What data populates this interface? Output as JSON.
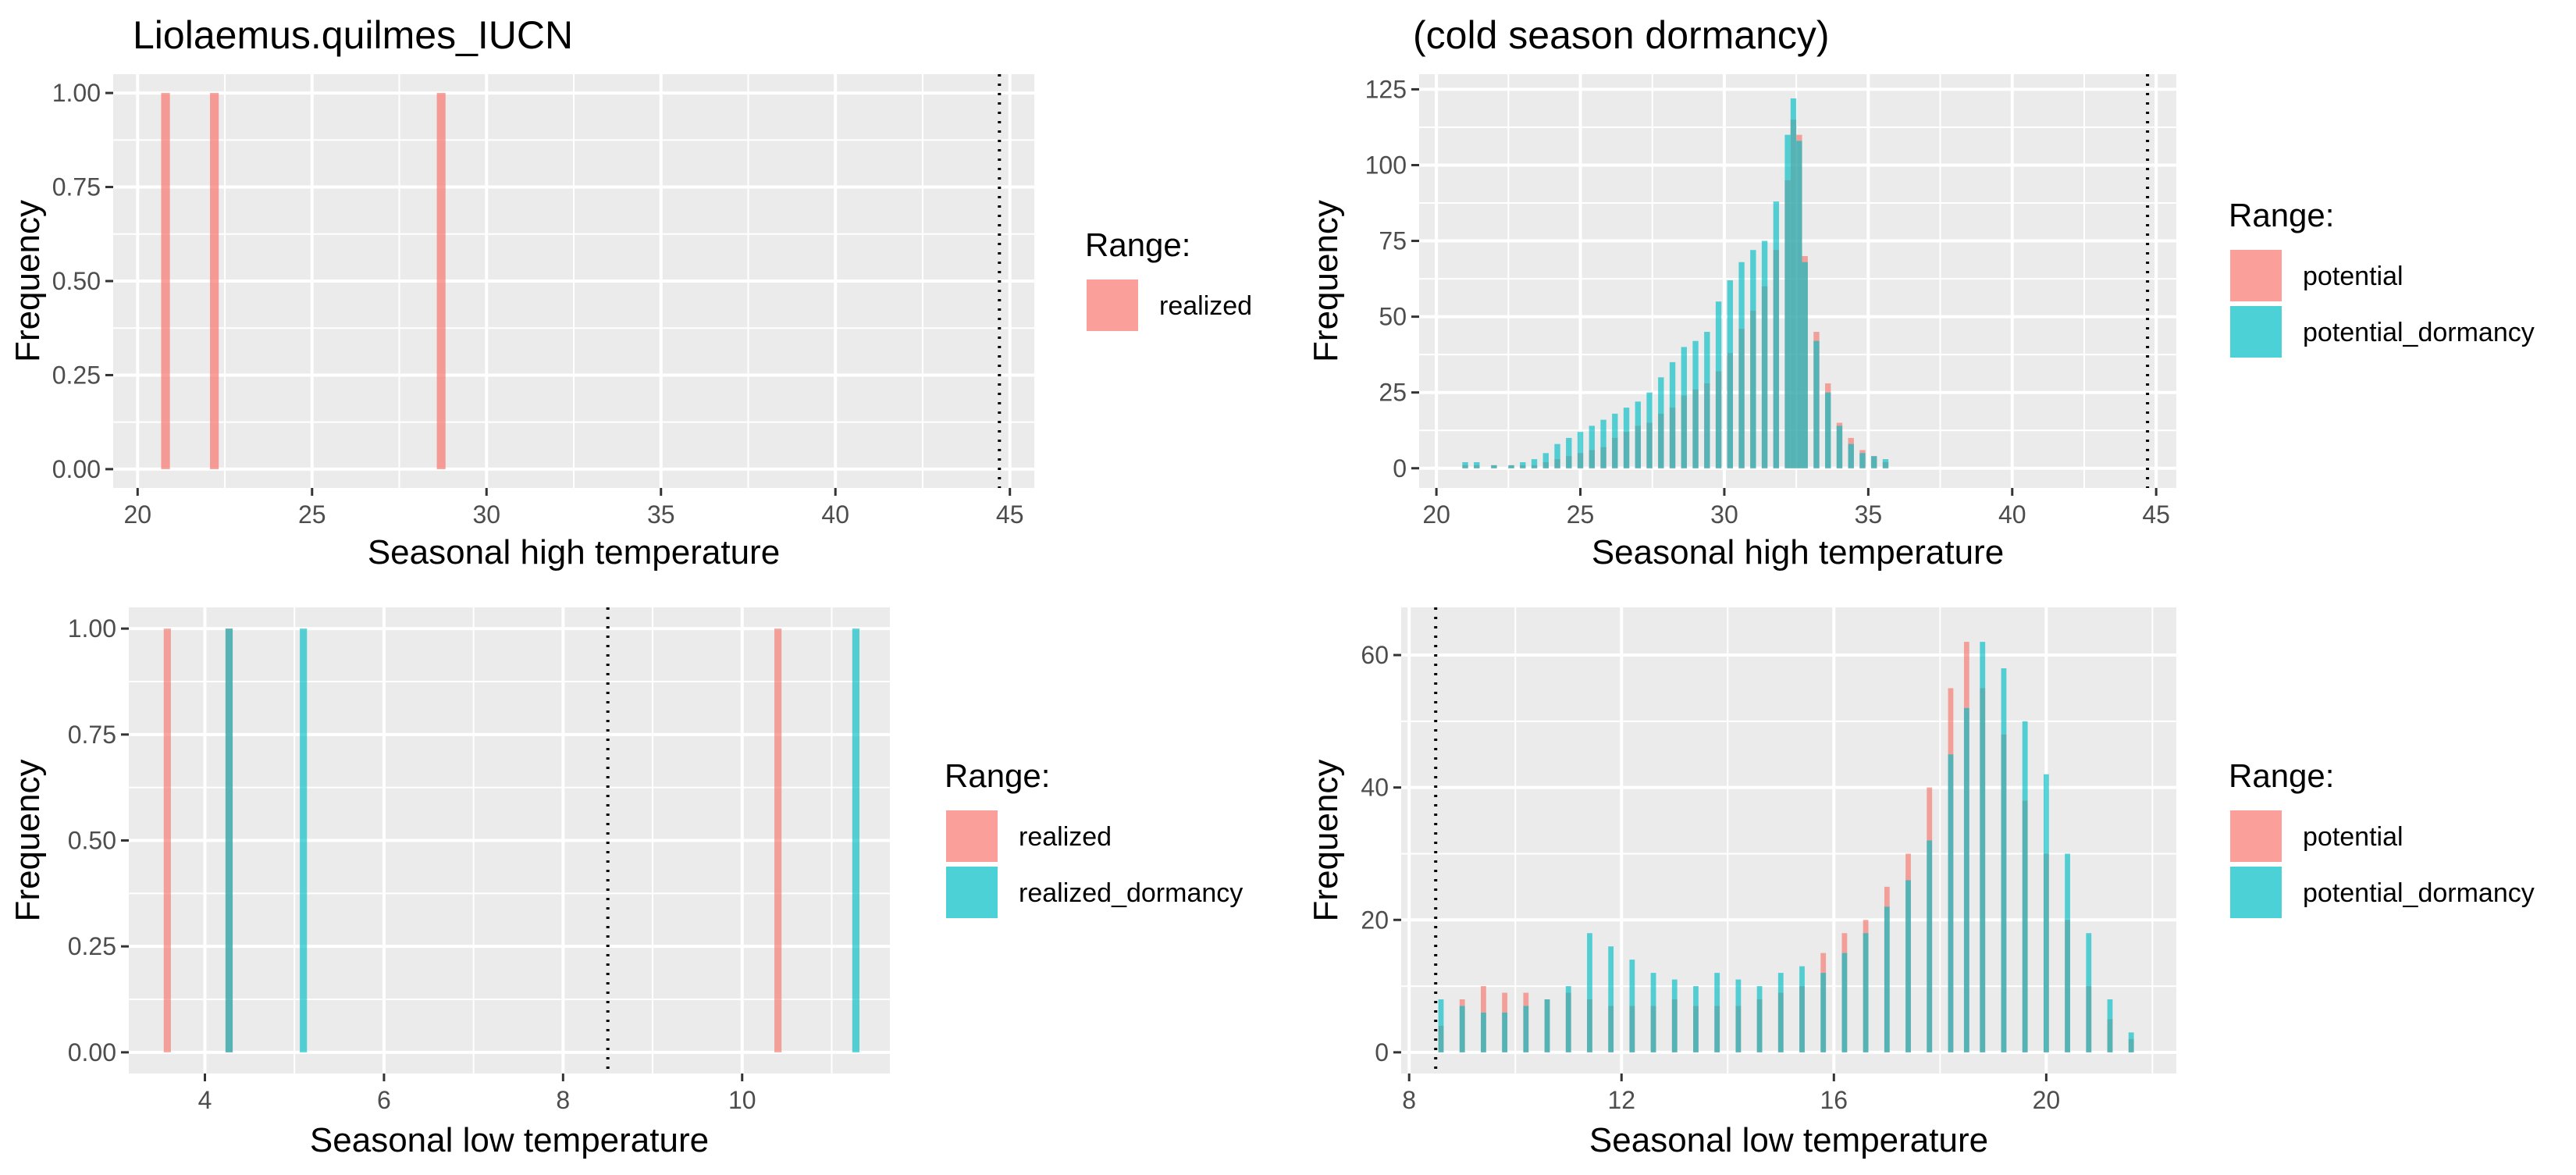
{
  "page": {
    "title_left": "Liolaemus.quilmes_IUCN",
    "title_right": "(cold season dormancy)"
  },
  "colors": {
    "realized": "#F8766D",
    "dormancy": "#00BFC4",
    "panel_bg": "#EBEBEB",
    "grid": "#FFFFFF"
  },
  "chart_data": [
    {
      "type": "bar",
      "title": "Liolaemus.quilmes_IUCN",
      "xlabel": "Seasonal high temperature",
      "ylabel": "Frequency",
      "xlim": [
        19.3,
        45.7
      ],
      "ylim": [
        -0.05,
        1.05
      ],
      "xticks": [
        20,
        25,
        30,
        35,
        40,
        45
      ],
      "yticks": [
        0.0,
        0.25,
        0.5,
        0.75,
        1.0
      ],
      "ytick_labels": [
        "0.00",
        "0.25",
        "0.50",
        "0.75",
        "1.00"
      ],
      "binwidth": 0.25,
      "threshold": 44.7,
      "legend_title": "Range:",
      "series": [
        {
          "name": "realized",
          "color": "#F8766D",
          "values": [
            [
              20.8,
              1
            ],
            [
              22.2,
              1
            ],
            [
              28.7,
              1
            ]
          ]
        }
      ]
    },
    {
      "type": "bar",
      "title": "(cold season dormancy)",
      "xlabel": "Seasonal high temperature",
      "ylabel": "Frequency",
      "xlim": [
        19.4,
        45.7
      ],
      "ylim": [
        -6.5,
        130
      ],
      "xticks": [
        20,
        25,
        30,
        35,
        40,
        45
      ],
      "yticks": [
        0,
        25,
        50,
        75,
        100,
        125
      ],
      "ytick_labels": [
        "0",
        "25",
        "50",
        "75",
        "100",
        "125"
      ],
      "binwidth": 0.2,
      "threshold": 44.7,
      "legend_title": "Range:",
      "series": [
        {
          "name": "potential",
          "color": "#F8766D",
          "values": [
            [
              21.0,
              1
            ],
            [
              21.4,
              1
            ],
            [
              22.0,
              1
            ],
            [
              22.6,
              1
            ],
            [
              23.0,
              1
            ],
            [
              23.4,
              1
            ],
            [
              23.8,
              2
            ],
            [
              24.2,
              3
            ],
            [
              24.6,
              4
            ],
            [
              25.0,
              5
            ],
            [
              25.4,
              6
            ],
            [
              25.8,
              7
            ],
            [
              26.2,
              10
            ],
            [
              26.6,
              12
            ],
            [
              27.0,
              14
            ],
            [
              27.4,
              15
            ],
            [
              27.8,
              18
            ],
            [
              28.2,
              20
            ],
            [
              28.6,
              24
            ],
            [
              29.0,
              26
            ],
            [
              29.4,
              28
            ],
            [
              29.8,
              32
            ],
            [
              30.2,
              38
            ],
            [
              30.6,
              46
            ],
            [
              31.0,
              52
            ],
            [
              31.4,
              60
            ],
            [
              31.8,
              72
            ],
            [
              32.2,
              95
            ],
            [
              32.4,
              115
            ],
            [
              32.6,
              110
            ],
            [
              32.8,
              70
            ],
            [
              33.2,
              45
            ],
            [
              33.6,
              28
            ],
            [
              34.0,
              15
            ],
            [
              34.4,
              10
            ],
            [
              34.8,
              6
            ],
            [
              35.2,
              4
            ],
            [
              35.6,
              2
            ]
          ]
        },
        {
          "name": "potential_dormancy",
          "color": "#00BFC4",
          "values": [
            [
              21.0,
              2
            ],
            [
              21.4,
              2
            ],
            [
              22.0,
              1
            ],
            [
              22.6,
              1
            ],
            [
              23.0,
              2
            ],
            [
              23.4,
              3
            ],
            [
              23.8,
              5
            ],
            [
              24.2,
              8
            ],
            [
              24.6,
              10
            ],
            [
              25.0,
              12
            ],
            [
              25.4,
              14
            ],
            [
              25.8,
              16
            ],
            [
              26.2,
              18
            ],
            [
              26.6,
              20
            ],
            [
              27.0,
              22
            ],
            [
              27.4,
              25
            ],
            [
              27.8,
              30
            ],
            [
              28.2,
              35
            ],
            [
              28.6,
              40
            ],
            [
              29.0,
              42
            ],
            [
              29.4,
              45
            ],
            [
              29.8,
              55
            ],
            [
              30.2,
              62
            ],
            [
              30.6,
              68
            ],
            [
              31.0,
              72
            ],
            [
              31.4,
              75
            ],
            [
              31.8,
              88
            ],
            [
              32.2,
              110
            ],
            [
              32.4,
              122
            ],
            [
              32.6,
              108
            ],
            [
              32.8,
              68
            ],
            [
              33.2,
              42
            ],
            [
              33.6,
              25
            ],
            [
              34.0,
              14
            ],
            [
              34.4,
              8
            ],
            [
              34.8,
              5
            ],
            [
              35.2,
              4
            ],
            [
              35.6,
              3
            ]
          ]
        }
      ]
    },
    {
      "type": "bar",
      "title": "",
      "xlabel": "Seasonal low temperature",
      "ylabel": "Frequency",
      "xlim": [
        3.15,
        11.65
      ],
      "ylim": [
        -0.05,
        1.05
      ],
      "xticks": [
        4,
        6,
        8,
        10
      ],
      "yticks": [
        0.0,
        0.25,
        0.5,
        0.75,
        1.0
      ],
      "ytick_labels": [
        "0.00",
        "0.25",
        "0.50",
        "0.75",
        "1.00"
      ],
      "binwidth": 0.08,
      "threshold": 8.5,
      "legend_title": "Range:",
      "series": [
        {
          "name": "realized",
          "color": "#F8766D",
          "values": [
            [
              3.58,
              1
            ],
            [
              4.27,
              1
            ],
            [
              10.4,
              1
            ]
          ]
        },
        {
          "name": "realized_dormancy",
          "color": "#00BFC4",
          "values": [
            [
              4.27,
              1
            ],
            [
              5.1,
              1
            ],
            [
              11.27,
              1
            ]
          ]
        }
      ]
    },
    {
      "type": "bar",
      "title": "",
      "xlabel": "Seasonal low temperature",
      "ylabel": "Frequency",
      "xlim": [
        7.85,
        22.45
      ],
      "ylim": [
        -3.2,
        67.2
      ],
      "xticks": [
        8,
        12,
        16,
        20
      ],
      "yticks": [
        0,
        20,
        40,
        60
      ],
      "ytick_labels": [
        "0",
        "20",
        "40",
        "60"
      ],
      "binwidth": 0.1,
      "threshold": 8.5,
      "legend_title": "Range:",
      "series": [
        {
          "name": "potential",
          "color": "#F8766D",
          "values": [
            [
              8.6,
              4
            ],
            [
              9.0,
              8
            ],
            [
              9.4,
              10
            ],
            [
              9.8,
              9
            ],
            [
              10.2,
              9
            ],
            [
              10.6,
              8
            ],
            [
              11.0,
              9
            ],
            [
              11.4,
              8
            ],
            [
              11.8,
              7
            ],
            [
              12.2,
              7
            ],
            [
              12.6,
              7
            ],
            [
              13.0,
              8
            ],
            [
              13.4,
              7
            ],
            [
              13.8,
              7
            ],
            [
              14.2,
              7
            ],
            [
              14.6,
              8
            ],
            [
              15.0,
              9
            ],
            [
              15.4,
              10
            ],
            [
              15.8,
              15
            ],
            [
              16.2,
              18
            ],
            [
              16.6,
              20
            ],
            [
              17.0,
              25
            ],
            [
              17.4,
              30
            ],
            [
              17.8,
              40
            ],
            [
              18.2,
              55
            ],
            [
              18.5,
              62
            ],
            [
              18.8,
              55
            ],
            [
              19.2,
              48
            ],
            [
              19.6,
              38
            ],
            [
              20.0,
              30
            ],
            [
              20.4,
              20
            ],
            [
              20.8,
              10
            ],
            [
              21.2,
              5
            ],
            [
              21.6,
              2
            ]
          ]
        },
        {
          "name": "potential_dormancy",
          "color": "#00BFC4",
          "values": [
            [
              8.6,
              8
            ],
            [
              9.0,
              7
            ],
            [
              9.4,
              6
            ],
            [
              9.8,
              6
            ],
            [
              10.2,
              7
            ],
            [
              10.6,
              8
            ],
            [
              11.0,
              10
            ],
            [
              11.4,
              18
            ],
            [
              11.8,
              16
            ],
            [
              12.2,
              14
            ],
            [
              12.6,
              12
            ],
            [
              13.0,
              11
            ],
            [
              13.4,
              10
            ],
            [
              13.8,
              12
            ],
            [
              14.2,
              11
            ],
            [
              14.6,
              10
            ],
            [
              15.0,
              12
            ],
            [
              15.4,
              13
            ],
            [
              15.8,
              12
            ],
            [
              16.2,
              15
            ],
            [
              16.6,
              18
            ],
            [
              17.0,
              22
            ],
            [
              17.4,
              26
            ],
            [
              17.8,
              32
            ],
            [
              18.2,
              45
            ],
            [
              18.5,
              52
            ],
            [
              18.8,
              62
            ],
            [
              19.2,
              58
            ],
            [
              19.6,
              50
            ],
            [
              20.0,
              42
            ],
            [
              20.4,
              30
            ],
            [
              20.8,
              18
            ],
            [
              21.2,
              8
            ],
            [
              21.6,
              3
            ]
          ]
        }
      ]
    }
  ]
}
